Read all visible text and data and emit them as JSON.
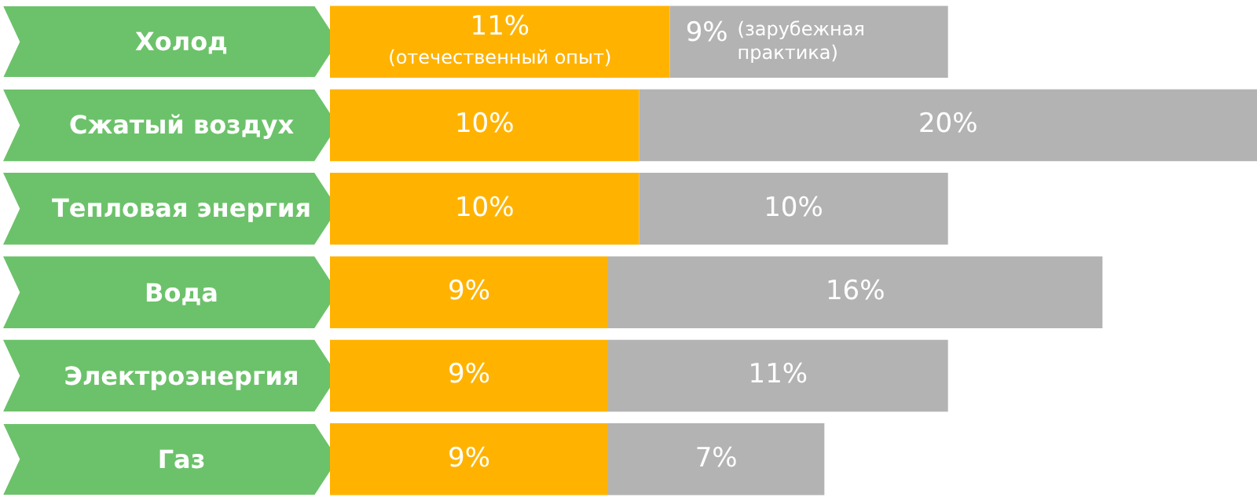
{
  "chart_data": {
    "type": "bar",
    "orientation": "horizontal",
    "stacked": true,
    "legend": false,
    "categories": [
      "Холод",
      "Сжатый воздух",
      "Тепловая энергия",
      "Вода",
      "Электроэнергия",
      "Газ"
    ],
    "series": [
      {
        "name": "(отечественный опыт)",
        "color": "#ffb300",
        "values": [
          11,
          10,
          10,
          9,
          9,
          9
        ],
        "value_labels": [
          "11%",
          "10%",
          "10%",
          "9%",
          "9%",
          "9%"
        ]
      },
      {
        "name": "(зарубежная практика)",
        "color": "#b3b3b3",
        "values": [
          9,
          20,
          10,
          16,
          11,
          7
        ],
        "value_labels": [
          "9%",
          "20%",
          "10%",
          "16%",
          "11%",
          "7%"
        ]
      }
    ]
  }
}
